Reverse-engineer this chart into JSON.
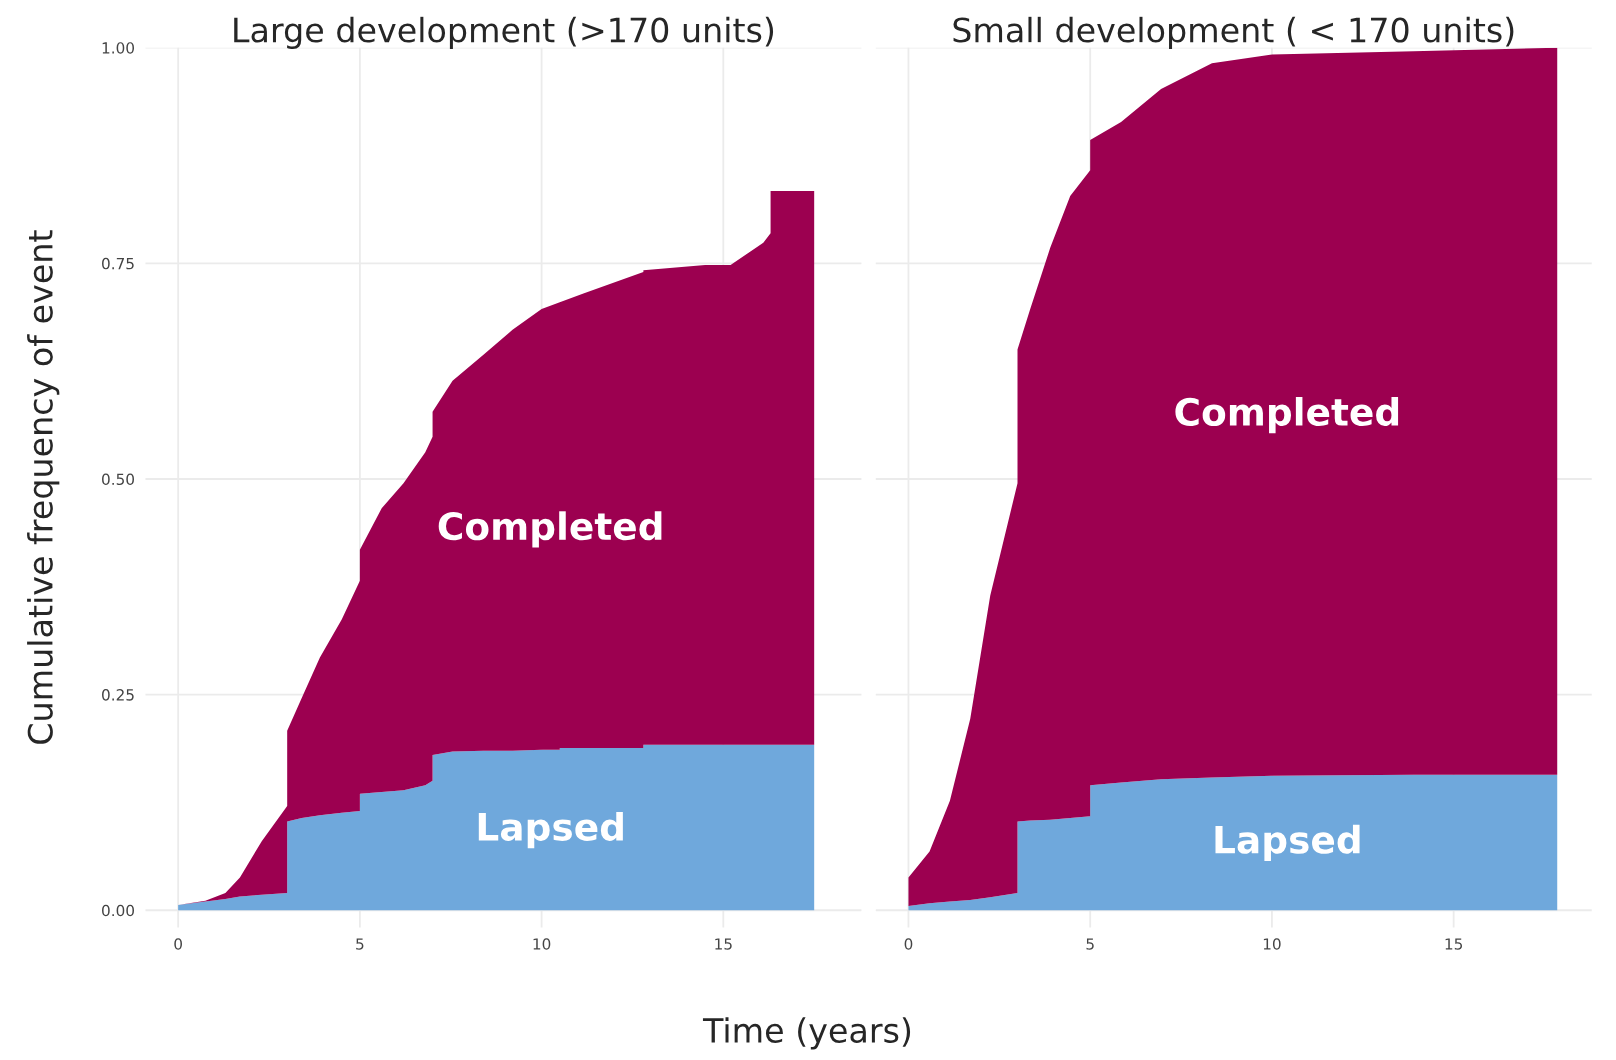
{
  "chart_data": [
    {
      "type": "area",
      "stacked": true,
      "title": "Large development (>170 units)",
      "xlabel": "Time (years)",
      "ylabel": "Cumulative frequency of event",
      "grid": true,
      "legend": false,
      "x": [
        0,
        0.75,
        1.3,
        1.7,
        2.3,
        3.0,
        3.0,
        3.4,
        3.9,
        4.5,
        5.0,
        5.0,
        5.6,
        6.2,
        6.8,
        7.0,
        7.0,
        7.55,
        8.4,
        9.2,
        10.0,
        10.5,
        10.5,
        11.15,
        12.8,
        12.8,
        14.5,
        15.2,
        16.1,
        16.3,
        16.3,
        17.5
      ],
      "xlim": [
        -0.9,
        18.8
      ],
      "xticks": [
        0,
        5,
        10,
        15
      ],
      "ylim": [
        -0.02,
        1.0
      ],
      "yticks": [
        {
          "value": 0,
          "label": "0.00"
        },
        {
          "value": 0.25,
          "label": "0.25"
        },
        {
          "value": 0.5,
          "label": "0.50"
        },
        {
          "value": 0.75,
          "label": "0.75"
        },
        {
          "value": 1,
          "label": "1.00"
        }
      ],
      "series": [
        {
          "name": "Lapsed",
          "color": "#6fa8dc",
          "values": [
            0.006,
            0.01,
            0.013,
            0.016,
            0.018,
            0.02,
            0.103,
            0.107,
            0.11,
            0.113,
            0.115,
            0.135,
            0.137,
            0.139,
            0.145,
            0.15,
            0.18,
            0.184,
            0.185,
            0.185,
            0.186,
            0.186,
            0.188,
            0.188,
            0.188,
            0.192,
            0.192,
            0.192,
            0.192,
            0.192,
            0.192,
            0.192
          ]
        },
        {
          "name": "Completed",
          "color": "#9c0050",
          "values": [
            0,
            0.001,
            0.007,
            0.022,
            0.062,
            0.101,
            0.105,
            0.139,
            0.183,
            0.224,
            0.267,
            0.283,
            0.329,
            0.356,
            0.386,
            0.399,
            0.398,
            0.43,
            0.459,
            0.488,
            0.511,
            0.519,
            0.517,
            0.527,
            0.552,
            0.55,
            0.556,
            0.556,
            0.582,
            0.593,
            0.642,
            0.642
          ]
        }
      ]
    },
    {
      "type": "area",
      "stacked": true,
      "title": "Small development ( < 170 units)",
      "grid": true,
      "legend": false,
      "tick_labels": "x",
      "x": [
        0,
        0.58,
        1.14,
        1.7,
        2.25,
        3.0,
        3.0,
        3.35,
        3.9,
        4.45,
        5.0,
        5.0,
        5.85,
        6.95,
        8.35,
        10,
        13.9,
        17.85
      ],
      "xlim": [
        -0.9,
        18.8
      ],
      "xticks": [
        0,
        5,
        10,
        15
      ],
      "ylim": [
        -0.02,
        1.0
      ],
      "yticks": [
        {
          "value": 0,
          "label": null
        },
        {
          "value": 0.25,
          "label": null
        },
        {
          "value": 0.5,
          "label": null
        },
        {
          "value": 0.75,
          "label": null
        },
        {
          "value": 1,
          "label": null
        }
      ],
      "series": [
        {
          "name": "Lapsed",
          "color": "#6fa8dc",
          "values": [
            0.005,
            0.008,
            0.01,
            0.012,
            0.015,
            0.02,
            0.103,
            0.104,
            0.105,
            0.107,
            0.109,
            0.145,
            0.148,
            0.152,
            0.154,
            0.156,
            0.157,
            0.157
          ]
        },
        {
          "name": "Completed",
          "color": "#9c0050",
          "values": [
            0.033,
            0.06,
            0.117,
            0.21,
            0.35,
            0.475,
            0.547,
            0.593,
            0.663,
            0.721,
            0.749,
            0.748,
            0.766,
            0.8,
            0.828,
            0.836,
            0.839,
            0.843
          ]
        }
      ]
    }
  ]
}
